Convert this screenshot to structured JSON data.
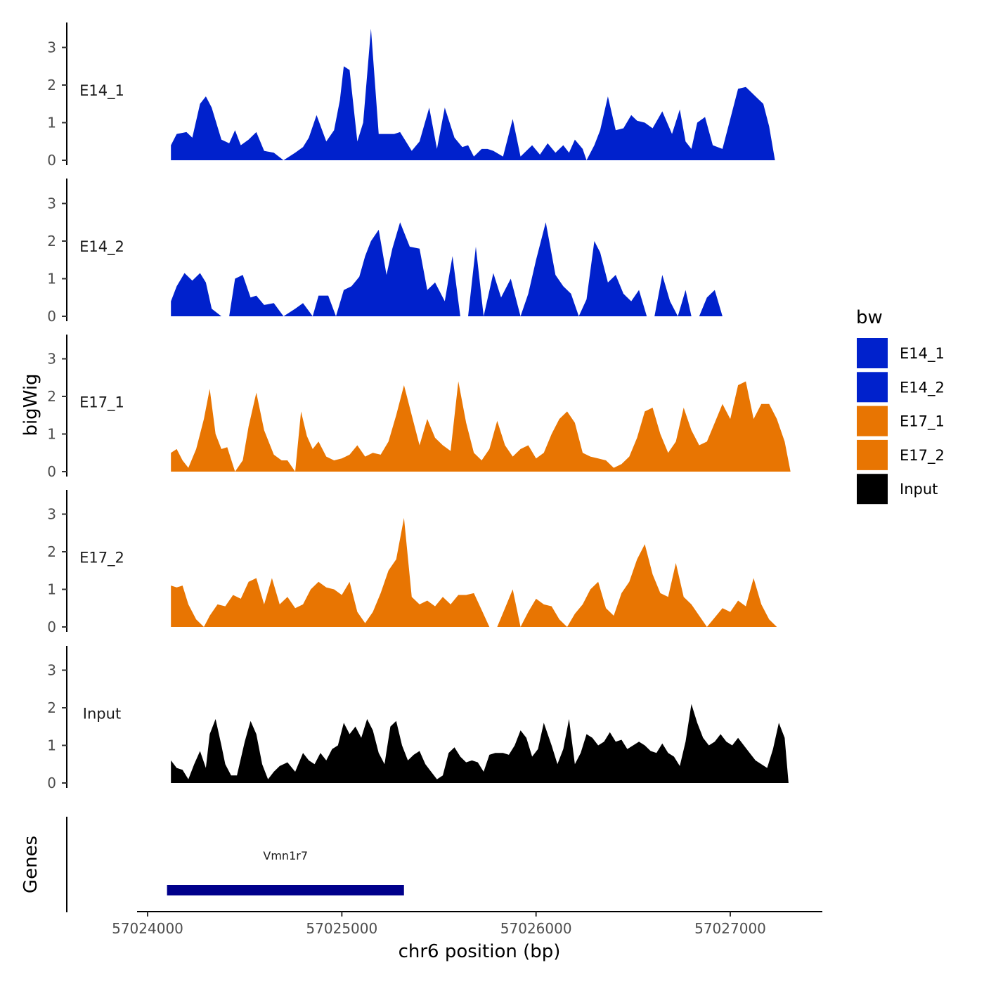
{
  "chart_data": {
    "type": "area",
    "chromosome": "chr6",
    "xlabel": "chr6 position (bp)",
    "ylabel": "bigWig",
    "genes_label": "Genes",
    "xlim": [
      57023950,
      57027480
    ],
    "data_xrange": [
      57024120,
      57027300
    ],
    "ylim": [
      0,
      3.6
    ],
    "x_ticks": [
      57024000,
      57025000,
      57026000,
      57027000
    ],
    "y_ticks": [
      0,
      1,
      2,
      3
    ],
    "legend": {
      "title": "bw",
      "position": "right",
      "entries": [
        {
          "label": "E14_1",
          "color": "#0021CC"
        },
        {
          "label": "E14_2",
          "color": "#0021CC"
        },
        {
          "label": "E17_1",
          "color": "#E87502"
        },
        {
          "label": "E17_2",
          "color": "#E87502"
        },
        {
          "label": "Input",
          "color": "#000000"
        }
      ]
    },
    "series": [
      {
        "name": "E14_1",
        "color": "#0021CC",
        "x": [
          57024120,
          57024150,
          57024200,
          57024230,
          57024270,
          57024300,
          57024330,
          57024380,
          57024420,
          57024450,
          57024480,
          57024520,
          57024560,
          57024600,
          57024650,
          57024700,
          57024760,
          57024800,
          57024830,
          57024870,
          57024920,
          57024960,
          57024990,
          57025010,
          57025040,
          57025080,
          57025110,
          57025150,
          57025190,
          57025230,
          57025270,
          57025300,
          57025360,
          57025400,
          57025450,
          57025490,
          57025530,
          57025580,
          57025620,
          57025650,
          57025680,
          57025720,
          57025750,
          57025780,
          57025830,
          57025880,
          57025920,
          57025980,
          57026020,
          57026060,
          57026100,
          57026140,
          57026170,
          57026200,
          57026240,
          57026260,
          57026300,
          57026330,
          57026370,
          57026410,
          57026450,
          57026490,
          57026520,
          57026560,
          57026600,
          57026650,
          57026700,
          57026740,
          57026770,
          57026800,
          57026830,
          57026870,
          57026910,
          57026960,
          57027000,
          57027040,
          57027080,
          57027130,
          57027170,
          57027200,
          57027230,
          57027260,
          57027290,
          57027300
        ],
        "y": [
          0.4,
          0.7,
          0.75,
          0.6,
          1.5,
          1.7,
          1.4,
          0.55,
          0.45,
          0.8,
          0.4,
          0.55,
          0.75,
          0.25,
          0.2,
          0.0,
          0.2,
          0.35,
          0.6,
          1.2,
          0.5,
          0.8,
          1.6,
          2.5,
          2.4,
          0.5,
          1.0,
          3.5,
          0.7,
          0.7,
          0.7,
          0.75,
          0.25,
          0.5,
          1.4,
          0.3,
          1.4,
          0.6,
          0.35,
          0.4,
          0.1,
          0.3,
          0.3,
          0.25,
          0.1,
          1.1,
          0.1,
          0.4,
          0.15,
          0.45,
          0.2,
          0.4,
          0.2,
          0.55,
          0.3,
          0.0,
          0.4,
          0.8,
          1.7,
          0.8,
          0.85,
          1.2,
          1.05,
          1.0,
          0.85,
          1.3,
          0.7,
          1.35,
          0.5,
          0.3,
          1.0,
          1.15,
          0.4,
          0.3,
          1.1,
          1.9,
          1.95,
          1.7,
          1.5,
          0.9,
          0.0,
          0.0,
          0.0,
          0.0
        ]
      },
      {
        "name": "E14_2",
        "color": "#0021CC",
        "x": [
          57024120,
          57024150,
          57024190,
          57024230,
          57024270,
          57024300,
          57024330,
          57024380,
          57024420,
          57024450,
          57024490,
          57024530,
          57024560,
          57024600,
          57024650,
          57024700,
          57024760,
          57024800,
          57024850,
          57024880,
          57024930,
          57024970,
          57025010,
          57025050,
          57025090,
          57025120,
          57025150,
          57025190,
          57025230,
          57025260,
          57025300,
          57025350,
          57025400,
          57025440,
          57025480,
          57025530,
          57025570,
          57025610,
          57025650,
          57025690,
          57025730,
          57025780,
          57025820,
          57025870,
          57025920,
          57025960,
          57026000,
          57026050,
          57026100,
          57026140,
          57026180,
          57026220,
          57026260,
          57026300,
          57026330,
          57026370,
          57026410,
          57026450,
          57026490,
          57026530,
          57026570,
          57026610,
          57026650,
          57026690,
          57026730,
          57026770,
          57026800,
          57026840,
          57026880,
          57026920,
          57026960,
          57027000,
          57027040,
          57027080,
          57027120,
          57027160,
          57027200,
          57027240,
          57027280,
          57027300
        ],
        "y": [
          0.4,
          0.8,
          1.15,
          0.95,
          1.15,
          0.9,
          0.2,
          0.0,
          0.0,
          1.0,
          1.1,
          0.5,
          0.55,
          0.3,
          0.35,
          0.0,
          0.2,
          0.35,
          0.0,
          0.55,
          0.55,
          0.0,
          0.7,
          0.8,
          1.05,
          1.6,
          2.0,
          2.3,
          1.1,
          1.8,
          2.5,
          1.85,
          1.8,
          0.7,
          0.9,
          0.4,
          1.6,
          0.0,
          0.0,
          1.85,
          0.0,
          1.15,
          0.5,
          1.0,
          0.0,
          0.6,
          1.5,
          2.5,
          1.1,
          0.8,
          0.6,
          0.0,
          0.45,
          2.0,
          1.7,
          0.9,
          1.1,
          0.6,
          0.4,
          0.7,
          0.0,
          0.0,
          1.1,
          0.4,
          0.0,
          0.7,
          0.0,
          0.0,
          0.5,
          0.7,
          0.0,
          0.0,
          0.0,
          0.0,
          0.0,
          0.0,
          0.0,
          0.0,
          0.0,
          0.0
        ]
      },
      {
        "name": "E17_1",
        "color": "#E87502",
        "x": [
          57024120,
          57024150,
          57024180,
          57024210,
          57024250,
          57024290,
          57024320,
          57024350,
          57024380,
          57024410,
          57024450,
          57024490,
          57024520,
          57024560,
          57024600,
          57024650,
          57024690,
          57024720,
          57024760,
          57024790,
          57024820,
          57024850,
          57024880,
          57024920,
          57024960,
          57025000,
          57025040,
          57025080,
          57025120,
          57025160,
          57025200,
          57025240,
          57025280,
          57025320,
          57025360,
          57025400,
          57025440,
          57025480,
          57025520,
          57025560,
          57025600,
          57025640,
          57025680,
          57025720,
          57025760,
          57025800,
          57025840,
          57025880,
          57025920,
          57025960,
          57026000,
          57026040,
          57026080,
          57026120,
          57026160,
          57026200,
          57026240,
          57026280,
          57026320,
          57026360,
          57026400,
          57026440,
          57026480,
          57026520,
          57026560,
          57026600,
          57026640,
          57026680,
          57026720,
          57026760,
          57026800,
          57026840,
          57026880,
          57026920,
          57026960,
          57027000,
          57027040,
          57027080,
          57027120,
          57027160,
          57027200,
          57027240,
          57027280,
          57027310
        ],
        "y": [
          0.5,
          0.6,
          0.3,
          0.1,
          0.6,
          1.4,
          2.2,
          1.0,
          0.6,
          0.65,
          0.0,
          0.3,
          1.2,
          2.1,
          1.1,
          0.45,
          0.3,
          0.3,
          0.0,
          1.6,
          0.95,
          0.6,
          0.8,
          0.4,
          0.3,
          0.35,
          0.45,
          0.7,
          0.4,
          0.5,
          0.45,
          0.8,
          1.5,
          2.3,
          1.5,
          0.7,
          1.4,
          0.9,
          0.7,
          0.55,
          2.4,
          1.3,
          0.5,
          0.3,
          0.6,
          1.35,
          0.7,
          0.4,
          0.6,
          0.7,
          0.35,
          0.5,
          1.0,
          1.4,
          1.6,
          1.3,
          0.5,
          0.4,
          0.35,
          0.3,
          0.1,
          0.2,
          0.4,
          0.9,
          1.6,
          1.7,
          1.0,
          0.5,
          0.8,
          1.7,
          1.1,
          0.7,
          0.8,
          1.3,
          1.8,
          1.4,
          2.3,
          2.4,
          1.4,
          1.8,
          1.8,
          1.4,
          0.8,
          0.0
        ]
      },
      {
        "name": "E17_2",
        "color": "#E87502",
        "x": [
          57024120,
          57024150,
          57024180,
          57024210,
          57024250,
          57024290,
          57024320,
          57024360,
          57024400,
          57024440,
          57024480,
          57024520,
          57024560,
          57024600,
          57024640,
          57024680,
          57024720,
          57024760,
          57024800,
          57024840,
          57024880,
          57024920,
          57024960,
          57025000,
          57025040,
          57025080,
          57025120,
          57025160,
          57025200,
          57025240,
          57025280,
          57025320,
          57025360,
          57025400,
          57025440,
          57025480,
          57025520,
          57025560,
          57025600,
          57025640,
          57025680,
          57025720,
          57025760,
          57025800,
          57025840,
          57025880,
          57025920,
          57025960,
          57026000,
          57026040,
          57026080,
          57026120,
          57026160,
          57026200,
          57026240,
          57026280,
          57026320,
          57026360,
          57026400,
          57026440,
          57026480,
          57026520,
          57026560,
          57026600,
          57026640,
          57026680,
          57026720,
          57026760,
          57026800,
          57026840,
          57026880,
          57026920,
          57026960,
          57027000,
          57027040,
          57027080,
          57027120,
          57027160,
          57027200,
          57027240,
          57027280,
          57027300
        ],
        "y": [
          1.1,
          1.05,
          1.1,
          0.6,
          0.2,
          0.0,
          0.3,
          0.6,
          0.55,
          0.85,
          0.75,
          1.2,
          1.3,
          0.6,
          1.3,
          0.6,
          0.8,
          0.5,
          0.6,
          1.0,
          1.2,
          1.05,
          1.0,
          0.85,
          1.2,
          0.4,
          0.1,
          0.4,
          0.9,
          1.5,
          1.8,
          2.9,
          0.8,
          0.6,
          0.7,
          0.55,
          0.8,
          0.6,
          0.85,
          0.85,
          0.9,
          0.45,
          0.0,
          0.0,
          0.5,
          1.0,
          0.0,
          0.4,
          0.75,
          0.6,
          0.55,
          0.2,
          0.0,
          0.35,
          0.6,
          1.0,
          1.2,
          0.5,
          0.3,
          0.9,
          1.2,
          1.8,
          2.2,
          1.4,
          0.9,
          0.8,
          1.7,
          0.8,
          0.6,
          0.3,
          0.0,
          0.25,
          0.5,
          0.4,
          0.7,
          0.55,
          1.3,
          0.6,
          0.2,
          0.0,
          0.0,
          0.0
        ]
      },
      {
        "name": "Input",
        "color": "#000000",
        "x": [
          57024120,
          57024150,
          57024180,
          57024210,
          57024240,
          57024270,
          57024300,
          57024320,
          57024350,
          57024380,
          57024400,
          57024430,
          57024460,
          57024500,
          57024530,
          57024560,
          57024590,
          57024620,
          57024650,
          57024680,
          57024720,
          57024760,
          57024800,
          57024830,
          57024860,
          57024890,
          57024920,
          57024950,
          57024980,
          57025010,
          57025040,
          57025070,
          57025100,
          57025130,
          57025160,
          57025190,
          57025220,
          57025250,
          57025280,
          57025310,
          57025340,
          57025370,
          57025400,
          57025430,
          57025460,
          57025490,
          57025520,
          57025550,
          57025580,
          57025610,
          57025640,
          57025670,
          57025700,
          57025730,
          57025760,
          57025790,
          57025830,
          57025860,
          57025890,
          57025920,
          57025950,
          57025980,
          57026010,
          57026040,
          57026080,
          57026110,
          57026140,
          57026170,
          57026200,
          57026230,
          57026260,
          57026290,
          57026320,
          57026350,
          57026380,
          57026410,
          57026440,
          57026470,
          57026500,
          57026530,
          57026560,
          57026590,
          57026620,
          57026650,
          57026680,
          57026710,
          57026740,
          57026770,
          57026800,
          57026830,
          57026860,
          57026890,
          57026920,
          57026950,
          57026980,
          57027010,
          57027040,
          57027070,
          57027100,
          57027130,
          57027160,
          57027190,
          57027220,
          57027250,
          57027280,
          57027300
        ],
        "y": [
          0.6,
          0.4,
          0.35,
          0.1,
          0.5,
          0.85,
          0.4,
          1.3,
          1.7,
          1.0,
          0.5,
          0.2,
          0.2,
          1.1,
          1.65,
          1.3,
          0.5,
          0.1,
          0.3,
          0.45,
          0.55,
          0.3,
          0.8,
          0.6,
          0.5,
          0.8,
          0.6,
          0.9,
          1.0,
          1.6,
          1.3,
          1.5,
          1.2,
          1.7,
          1.4,
          0.8,
          0.5,
          1.5,
          1.65,
          1.0,
          0.6,
          0.75,
          0.85,
          0.5,
          0.3,
          0.1,
          0.2,
          0.8,
          0.95,
          0.7,
          0.55,
          0.6,
          0.55,
          0.3,
          0.75,
          0.8,
          0.8,
          0.75,
          1.0,
          1.4,
          1.2,
          0.7,
          0.9,
          1.6,
          1.0,
          0.5,
          0.9,
          1.7,
          0.5,
          0.8,
          1.3,
          1.2,
          1.0,
          1.1,
          1.35,
          1.1,
          1.15,
          0.9,
          1.0,
          1.1,
          1.0,
          0.85,
          0.8,
          1.05,
          0.8,
          0.7,
          0.45,
          1.1,
          2.1,
          1.6,
          1.2,
          1.0,
          1.1,
          1.3,
          1.1,
          1.0,
          1.2,
          1.0,
          0.8,
          0.6,
          0.5,
          0.4,
          0.9,
          1.6,
          1.2,
          0.0
        ]
      }
    ],
    "genes": [
      {
        "name": "Vmn1r7",
        "start": 57024100,
        "end": 57025320,
        "color": "#00008B"
      }
    ]
  }
}
